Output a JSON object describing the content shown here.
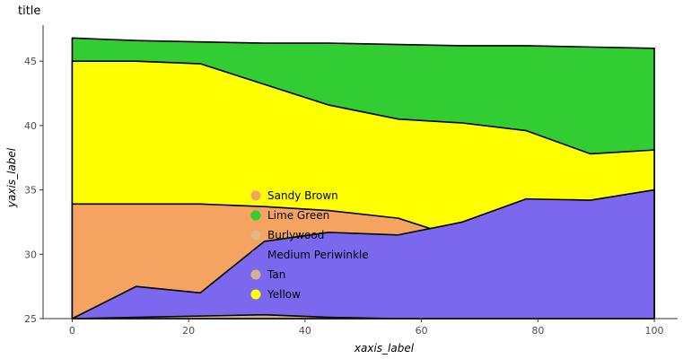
{
  "chart_data": {
    "type": "area",
    "title": "title",
    "xlabel": "xaxis_label",
    "ylabel": "yaxis_label",
    "xlim": [
      -5,
      104
    ],
    "ylim": [
      25,
      47.8
    ],
    "x_ticks": [
      0,
      20,
      40,
      60,
      80,
      100
    ],
    "y_ticks": [
      25,
      30,
      35,
      40,
      45
    ],
    "grid": false,
    "legend_position": "center",
    "x": [
      0,
      11,
      22,
      33,
      44,
      56,
      67,
      78,
      89,
      100
    ],
    "series": [
      {
        "name": "Sandy Brown",
        "color": "#f4a460",
        "values": [
          33.9,
          33.9,
          33.9,
          33.7,
          33.4,
          32.8,
          31.2,
          29.0,
          26.8,
          25.2
        ]
      },
      {
        "name": "Lime Green",
        "color": "#32cd32",
        "values": [
          46.8,
          46.6,
          46.5,
          46.4,
          46.4,
          46.3,
          46.2,
          46.2,
          46.1,
          46.0
        ]
      },
      {
        "name": "Burlywood",
        "color": "#deb887",
        "values": [
          25.0,
          25.0,
          25.0,
          25.0,
          25.0,
          25.0,
          25.0,
          25.0,
          25.0,
          25.0
        ]
      },
      {
        "name": "Medium Periwinkle",
        "color": "#7b68ee",
        "values": [
          25.0,
          27.5,
          27.0,
          31.0,
          31.7,
          31.5,
          32.5,
          34.3,
          34.2,
          35.0
        ]
      },
      {
        "name": "Tan",
        "color": "#d2b48c",
        "values": [
          25.0,
          25.1,
          25.2,
          25.3,
          25.1,
          25.0,
          25.0,
          25.0,
          25.0,
          25.0
        ]
      },
      {
        "name": "Yellow",
        "color": "#ffff00",
        "values": [
          45.0,
          45.0,
          44.8,
          43.2,
          41.6,
          40.5,
          40.2,
          39.6,
          37.8,
          38.1
        ]
      }
    ],
    "draw_order": [
      "Lime Green",
      "Yellow",
      "Sandy Brown",
      "Medium Periwinkle",
      "Tan",
      "Burlywood"
    ]
  }
}
